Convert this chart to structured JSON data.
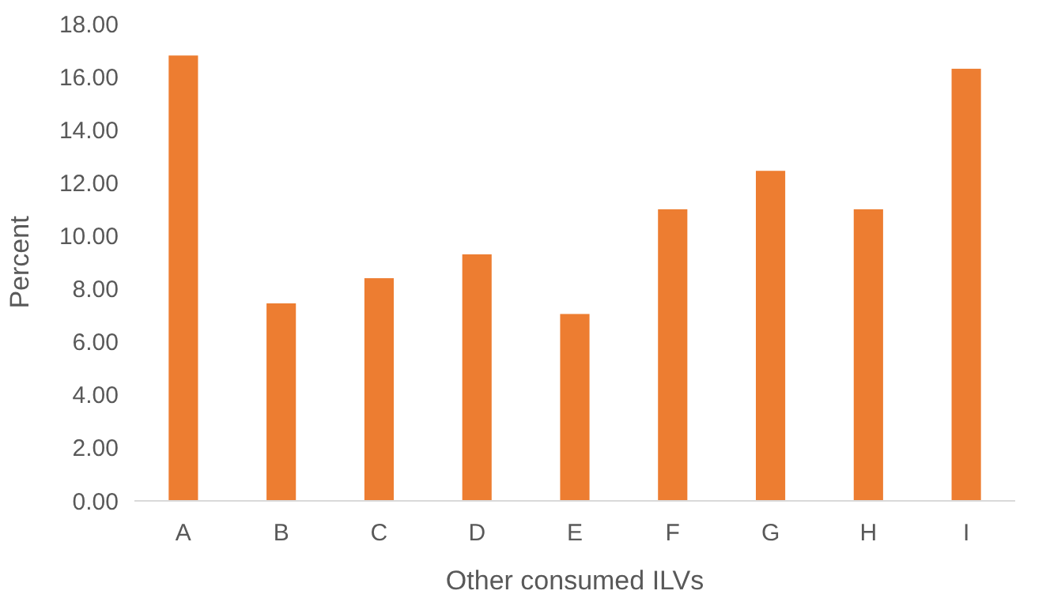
{
  "chart_data": {
    "type": "bar",
    "xlabel": "Other consumed  ILVs",
    "ylabel": "Percent",
    "categories": [
      "A",
      "B",
      "C",
      "D",
      "E",
      "F",
      "G",
      "H",
      "I"
    ],
    "values": [
      16.8,
      7.45,
      8.4,
      9.3,
      7.05,
      11.0,
      12.45,
      11.0,
      16.3
    ],
    "color": "#ed7d31",
    "ylim": [
      0,
      18
    ],
    "yticks": [
      {
        "value": 0,
        "label": "0.00"
      },
      {
        "value": 2,
        "label": "2.00"
      },
      {
        "value": 4,
        "label": "4.00"
      },
      {
        "value": 6,
        "label": "6.00"
      },
      {
        "value": 8,
        "label": "8.00"
      },
      {
        "value": 10,
        "label": "10.00"
      },
      {
        "value": 12,
        "label": "12.00"
      },
      {
        "value": 14,
        "label": "14.00"
      },
      {
        "value": 16,
        "label": "16.00"
      },
      {
        "value": 18,
        "label": "18.00"
      }
    ],
    "grid": false
  }
}
